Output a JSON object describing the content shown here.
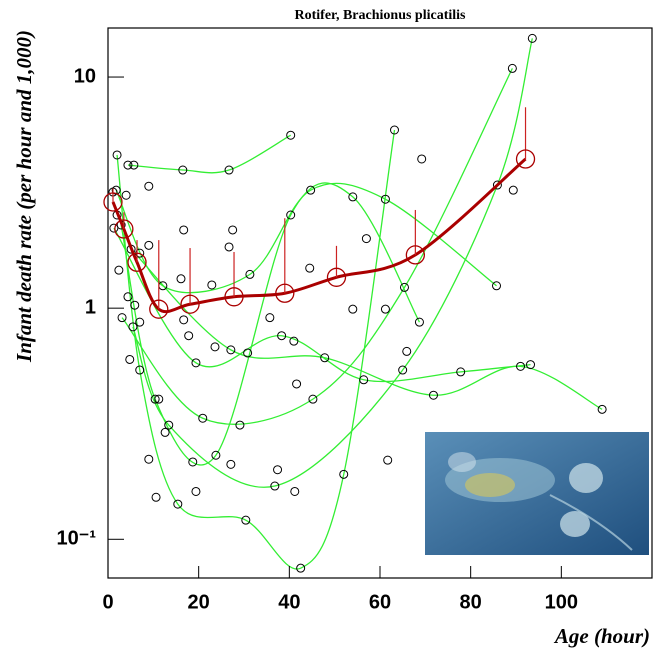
{
  "chart_data": {
    "type": "scatter",
    "title": "Rotifer, Brachionus plicatilis",
    "x_label": "Age (hour)",
    "y_label": "Infant death rate (per hour and 1,000)",
    "log_y": true,
    "xlim": [
      0,
      120
    ],
    "ylim": [
      0.068,
      16.3
    ],
    "xticks": [
      0,
      20,
      40,
      60,
      80,
      100
    ],
    "yticks": [
      {
        "value": 0.1,
        "label": "10⁻¹"
      },
      1,
      10
    ],
    "series": [
      {
        "marker": "circle",
        "color": "#000000",
        "x": [
          1.1,
          2.0,
          1.8,
          2.0,
          2.9,
          1.3,
          2.4,
          3.1,
          4.0,
          4.4,
          5.7,
          5.1,
          4.4,
          5.9,
          5.5,
          4.8,
          7.0,
          7.0,
          7.0,
          9.0,
          9.0,
          9.0,
          10.4,
          11.2,
          10.6,
          12.6,
          13.4,
          12.1,
          15.4,
          16.1,
          16.7,
          16.7,
          16.5,
          17.8,
          18.7,
          19.4,
          19.4,
          20.9,
          22.9,
          23.6,
          23.8,
          26.7,
          26.7,
          27.1,
          27.1,
          27.5,
          29.1,
          30.4,
          30.8,
          31.3,
          35.7,
          36.8,
          37.4,
          38.3,
          40.3,
          40.3,
          41.0,
          41.2,
          41.6,
          42.5,
          44.5,
          44.7,
          45.2,
          47.8,
          52.0,
          54.0,
          54.0,
          56.4,
          57.0,
          61.2,
          61.2,
          61.7,
          63.2,
          65.0,
          65.4,
          65.9,
          68.7,
          69.2,
          71.8,
          77.8,
          85.7,
          85.9,
          89.2,
          89.4,
          93.6,
          93.2,
          91.0,
          109
        ],
        "values": [
          3.18,
          4.6,
          3.24,
          2.53,
          2.29,
          2.22,
          1.46,
          0.91,
          3.08,
          4.16,
          4.16,
          1.8,
          1.12,
          1.03,
          0.83,
          0.6,
          0.87,
          0.54,
          1.73,
          1.87,
          3.37,
          0.222,
          0.404,
          0.404,
          0.152,
          0.29,
          0.312,
          1.25,
          0.142,
          1.34,
          0.89,
          2.18,
          3.96,
          0.76,
          0.216,
          0.161,
          0.58,
          0.334,
          1.26,
          0.68,
          0.231,
          3.96,
          1.84,
          0.66,
          0.211,
          2.18,
          0.312,
          0.121,
          0.64,
          1.4,
          0.91,
          0.17,
          0.2,
          0.76,
          5.6,
          2.53,
          0.72,
          0.161,
          0.47,
          0.075,
          1.49,
          3.24,
          0.404,
          0.61,
          0.191,
          3.03,
          0.99,
          0.49,
          2.0,
          2.96,
          0.99,
          0.22,
          5.9,
          0.54,
          1.23,
          0.65,
          0.87,
          4.42,
          0.42,
          0.53,
          1.25,
          3.41,
          10.9,
          3.24,
          14.7,
          0.57,
          0.56,
          0.365
        ]
      },
      {
        "marker": "big-circle",
        "color": "#aa0000",
        "x": [
          1.1,
          3.5,
          6.4,
          11.2,
          18.1,
          27.8,
          39.0,
          50.4,
          67.8,
          92.1
        ],
        "values": [
          2.88,
          2.2,
          1.58,
          0.99,
          1.04,
          1.12,
          1.16,
          1.36,
          1.7,
          4.42
        ],
        "upper": [
          3.3,
          2.6,
          1.97,
          1.97,
          1.82,
          1.75,
          2.45,
          1.86,
          2.66,
          7.4
        ]
      }
    ],
    "curves": [
      {
        "color": "#33ee33",
        "x": [
          2,
          7,
          15.4,
          30.4,
          42.5,
          52,
          63.2
        ],
        "values": [
          4.6,
          0.54,
          0.142,
          0.121,
          0.075,
          0.191,
          5.9
        ]
      },
      {
        "color": "#33ee33",
        "x": [
          2.9,
          10.4,
          23.8,
          40.3,
          54,
          68.7
        ],
        "values": [
          2.29,
          0.404,
          0.231,
          2.53,
          3.03,
          0.87
        ]
      },
      {
        "color": "#33ee33",
        "x": [
          4.4,
          16.5,
          26.7,
          40.3
        ],
        "values": [
          4.16,
          3.96,
          3.96,
          5.6
        ]
      },
      {
        "color": "#33ee33",
        "x": [
          1.8,
          12.1,
          31.3,
          44.7,
          61.2,
          85.7
        ],
        "values": [
          3.24,
          1.25,
          1.4,
          3.24,
          2.96,
          1.25
        ]
      },
      {
        "color": "#33ee33",
        "x": [
          5.1,
          27.1,
          47.8,
          71.8,
          91,
          109
        ],
        "values": [
          1.8,
          0.66,
          0.61,
          0.42,
          0.56,
          0.365
        ]
      },
      {
        "color": "#33ee33",
        "x": [
          5.5,
          13.4,
          36.8,
          65,
          85.9,
          93.6
        ],
        "values": [
          0.83,
          0.312,
          0.17,
          0.54,
          3.41,
          14.7
        ]
      },
      {
        "color": "#33ee33",
        "x": [
          1.3,
          19.4,
          38.3,
          56.4,
          77.8,
          93.2
        ],
        "values": [
          2.22,
          0.58,
          0.76,
          0.49,
          0.53,
          0.57
        ]
      },
      {
        "color": "#33ee33",
        "x": [
          3.1,
          20.9,
          45.2,
          65.4,
          89.2
        ],
        "values": [
          0.91,
          0.334,
          0.404,
          1.23,
          10.9
        ]
      }
    ]
  }
}
